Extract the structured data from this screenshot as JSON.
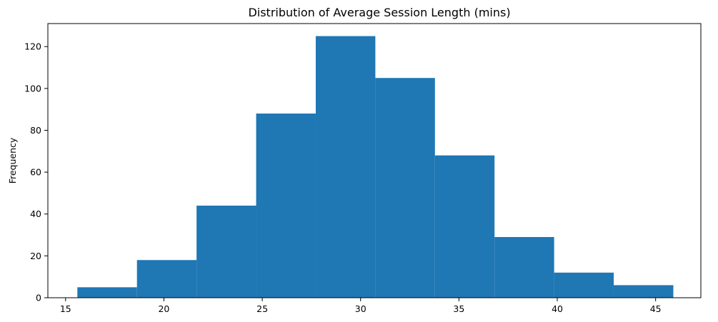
{
  "chart_data": {
    "type": "bar",
    "title": "Distribution of Average Session Length (mins)",
    "xlabel": "",
    "ylabel": "Frequency",
    "xlim": [
      14.1,
      47.3
    ],
    "ylim": [
      0,
      131
    ],
    "bin_edges": [
      15.6,
      18.63,
      21.66,
      24.69,
      27.72,
      30.75,
      33.78,
      36.81,
      39.84,
      42.87,
      45.9
    ],
    "values": [
      5,
      18,
      44,
      88,
      125,
      105,
      68,
      29,
      12,
      6
    ],
    "xticks": [
      15,
      20,
      25,
      30,
      35,
      40,
      45
    ],
    "yticks": [
      0,
      20,
      40,
      60,
      80,
      100,
      120
    ],
    "bar_color": "#1f77b4",
    "grid": false
  }
}
